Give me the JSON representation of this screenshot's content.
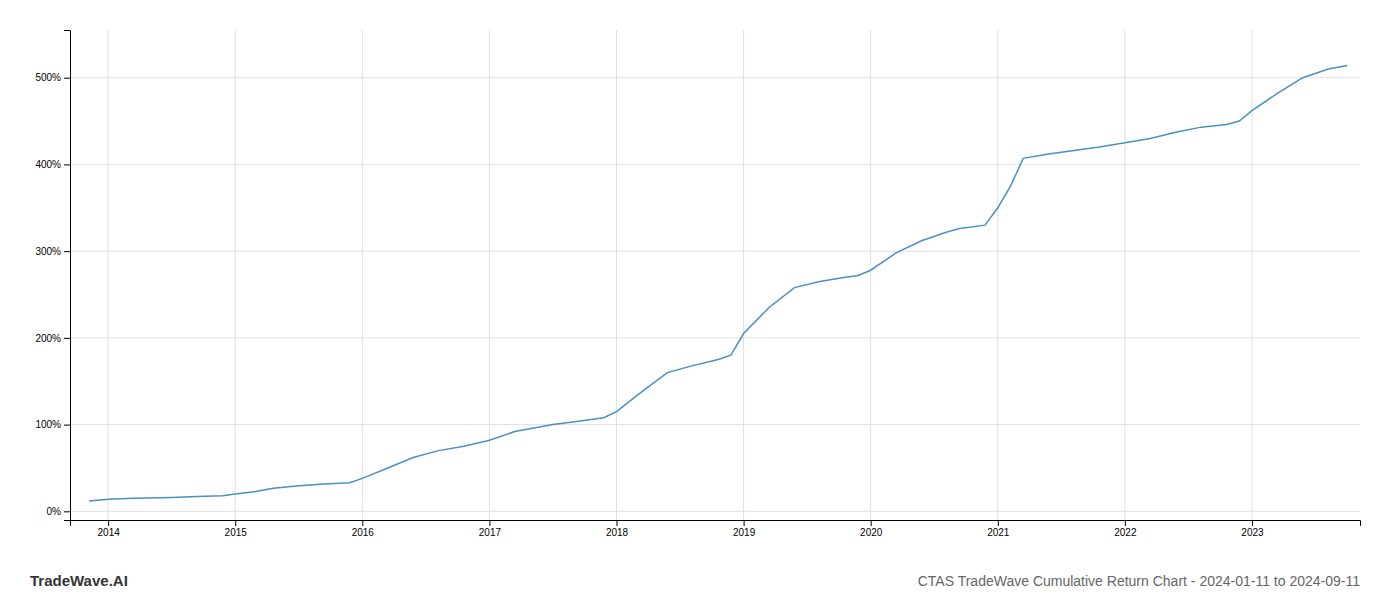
{
  "chart_data": {
    "type": "line",
    "title": "CTAS TradeWave Cumulative Return Chart - 2024-01-11 to 2024-09-11",
    "annotations": [
      "TradeWave.AI"
    ],
    "color": "#4a90c4",
    "grid": true,
    "x": [
      2013.85,
      2014.0,
      2014.2,
      2014.5,
      2014.7,
      2014.9,
      2015.0,
      2015.15,
      2015.3,
      2015.5,
      2015.7,
      2015.9,
      2016.0,
      2016.2,
      2016.4,
      2016.6,
      2016.8,
      2017.0,
      2017.2,
      2017.5,
      2017.7,
      2017.9,
      2018.0,
      2018.2,
      2018.4,
      2018.6,
      2018.8,
      2018.9,
      2019.0,
      2019.2,
      2019.4,
      2019.6,
      2019.8,
      2019.9,
      2020.0,
      2020.2,
      2020.4,
      2020.6,
      2020.7,
      2020.9,
      2021.0,
      2021.1,
      2021.2,
      2021.4,
      2021.6,
      2021.8,
      2022.0,
      2022.2,
      2022.4,
      2022.6,
      2022.8,
      2022.9,
      2023.0,
      2023.2,
      2023.4,
      2023.6,
      2023.75
    ],
    "values": [
      0.12,
      0.14,
      0.15,
      0.16,
      0.17,
      0.18,
      0.2,
      0.225,
      0.265,
      0.295,
      0.315,
      0.33,
      0.38,
      0.5,
      0.62,
      0.7,
      0.75,
      0.82,
      0.92,
      1.0,
      1.04,
      1.08,
      1.15,
      1.38,
      1.6,
      1.68,
      1.75,
      1.8,
      2.05,
      2.35,
      2.58,
      2.65,
      2.7,
      2.72,
      2.78,
      2.98,
      3.12,
      3.22,
      3.26,
      3.3,
      3.5,
      3.75,
      4.07,
      4.12,
      4.16,
      4.2,
      4.25,
      4.3,
      4.37,
      4.43,
      4.46,
      4.5,
      4.62,
      4.82,
      5.0,
      5.1,
      5.14
    ],
    "xlim": [
      2013.7,
      2023.85
    ],
    "ylim": [
      -0.1,
      5.55
    ],
    "xticks": [
      2014,
      2015,
      2016,
      2017,
      2018,
      2019,
      2020,
      2021,
      2022,
      2023
    ],
    "yticks": [
      {
        "value": 0,
        "label": "0%"
      },
      {
        "value": 1,
        "label": "100%"
      },
      {
        "value": 2,
        "label": "200%"
      },
      {
        "value": 3,
        "label": "300%"
      },
      {
        "value": 4,
        "label": "400%"
      },
      {
        "value": 5,
        "label": "500%"
      }
    ]
  }
}
